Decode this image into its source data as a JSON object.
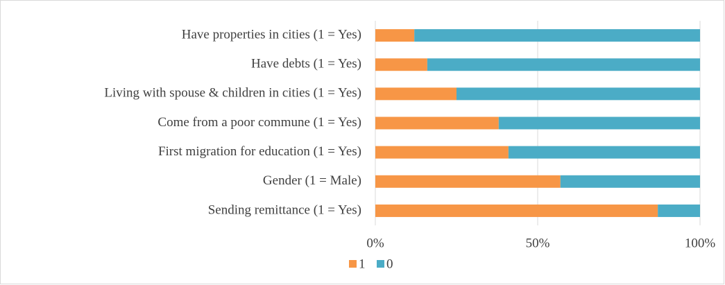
{
  "chart_data": {
    "type": "stacked_bar_horizontal",
    "categories": [
      "Have properties in cities (1 = Yes)",
      "Have debts (1 = Yes)",
      "Living with spouse & children in cities (1 = Yes)",
      "Come from a poor commune (1 = Yes)",
      "First migration for education (1 = Yes)",
      "Gender (1 = Male)",
      "Sending remittance (1 = Yes)"
    ],
    "series": [
      {
        "name": "1",
        "color": "#f79646",
        "values": [
          12,
          16,
          25,
          38,
          41,
          57,
          87
        ]
      },
      {
        "name": "0",
        "color": "#4bacc6",
        "values": [
          88,
          84,
          75,
          62,
          59,
          43,
          13
        ]
      }
    ],
    "xlim": [
      0,
      100
    ],
    "xticks": [
      {
        "value": 0,
        "label": "0%"
      },
      {
        "value": 50,
        "label": "50%"
      },
      {
        "value": 100,
        "label": "100%"
      }
    ],
    "grid": true,
    "legend": "bottom"
  }
}
